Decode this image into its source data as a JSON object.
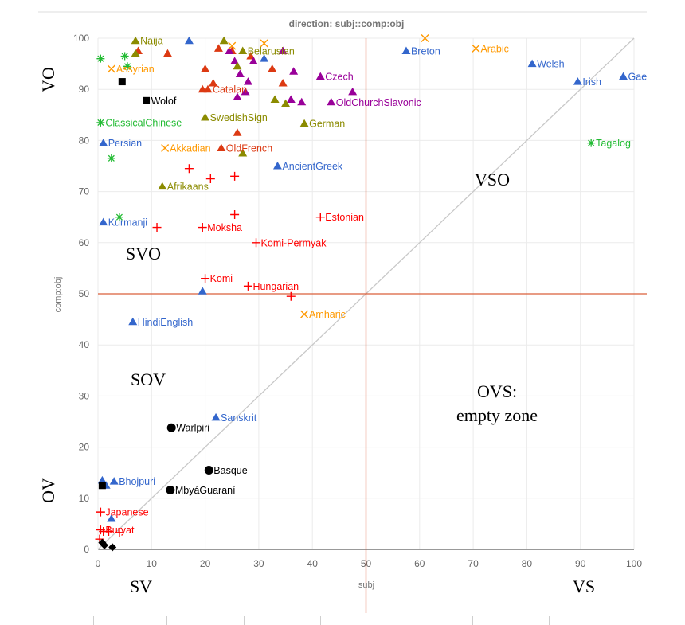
{
  "chart_data": {
    "type": "scatter",
    "title": "direction: subj::comp:obj",
    "xlabel": "subj",
    "ylabel": "comp:obj",
    "xlim": [
      0,
      100
    ],
    "ylim": [
      0,
      100
    ],
    "xticks": [
      "0",
      "10",
      "20",
      "30",
      "40",
      "50",
      "60",
      "70",
      "80",
      "90",
      "100"
    ],
    "yticks": [
      "0",
      "10",
      "20",
      "30",
      "40",
      "50",
      "60",
      "70",
      "80",
      "90",
      "100"
    ],
    "grid": true,
    "reference_lines": {
      "vertical_x": 50,
      "horizontal_y": 50,
      "diagonal": true
    },
    "zone_labels": [
      "VO",
      "OV",
      "SV",
      "VS",
      "SVO",
      "SOV",
      "VSO",
      "OVS:",
      "empty zone"
    ],
    "series": [
      {
        "marker": "triangle",
        "color": "#3366cc",
        "points": [
          {
            "x": 17,
            "y": 99.5
          },
          {
            "x": 31,
            "y": 96
          },
          {
            "x": 57.5,
            "y": 97.5,
            "label": "Breton"
          },
          {
            "x": 81,
            "y": 95,
            "label": "Welsh"
          },
          {
            "x": 89.5,
            "y": 91.5,
            "label": "Irish"
          },
          {
            "x": 98,
            "y": 92.5,
            "label": "Gae"
          },
          {
            "x": 1,
            "y": 79.5,
            "label": "Persian"
          },
          {
            "x": 33.5,
            "y": 75,
            "label": "AncientGreek"
          },
          {
            "x": 1,
            "y": 64,
            "label": "Kurmanji"
          },
          {
            "x": 19.5,
            "y": 50.5
          },
          {
            "x": 6.5,
            "y": 44.5,
            "label": "HindiEnglish"
          },
          {
            "x": 22,
            "y": 25.8,
            "label": "Sanskrit"
          },
          {
            "x": 0.8,
            "y": 13.5
          },
          {
            "x": 1.5,
            "y": 12.5
          },
          {
            "x": 3,
            "y": 13.3,
            "label": "Bhojpuri"
          },
          {
            "x": 2.5,
            "y": 6
          }
        ]
      },
      {
        "marker": "triangle",
        "color": "#dc3912",
        "points": [
          {
            "x": 7.5,
            "y": 97.5
          },
          {
            "x": 13,
            "y": 97
          },
          {
            "x": 20,
            "y": 94
          },
          {
            "x": 22.5,
            "y": 98
          },
          {
            "x": 25,
            "y": 97.5
          },
          {
            "x": 19.5,
            "y": 90
          },
          {
            "x": 21.5,
            "y": 91.2
          },
          {
            "x": 20.5,
            "y": 90,
            "label": "Catalan"
          },
          {
            "x": 34.5,
            "y": 91.2
          },
          {
            "x": 32.5,
            "y": 94
          },
          {
            "x": 28.5,
            "y": 96.5
          },
          {
            "x": 26,
            "y": 81.5
          },
          {
            "x": 23,
            "y": 78.5,
            "label": "OldFrench"
          }
        ]
      },
      {
        "marker": "triangle",
        "color": "#990099",
        "points": [
          {
            "x": 24.5,
            "y": 97.5
          },
          {
            "x": 25.5,
            "y": 95.5
          },
          {
            "x": 26.5,
            "y": 93
          },
          {
            "x": 28,
            "y": 91.5
          },
          {
            "x": 29,
            "y": 95.5
          },
          {
            "x": 27.5,
            "y": 89.5
          },
          {
            "x": 26,
            "y": 88.5
          },
          {
            "x": 34.5,
            "y": 97.5
          },
          {
            "x": 36.5,
            "y": 93.5
          },
          {
            "x": 41.5,
            "y": 92.5,
            "label": "Czech"
          },
          {
            "x": 36,
            "y": 88
          },
          {
            "x": 38,
            "y": 87.5
          },
          {
            "x": 47.5,
            "y": 89.5
          },
          {
            "x": 43.5,
            "y": 87.5,
            "label": "OldChurchSlavonic"
          }
        ]
      },
      {
        "marker": "triangle",
        "color": "#8b8b00",
        "points": [
          {
            "x": 7,
            "y": 99.5,
            "label": "Naija"
          },
          {
            "x": 7,
            "y": 97
          },
          {
            "x": 23.5,
            "y": 99.5
          },
          {
            "x": 26,
            "y": 94.5
          },
          {
            "x": 27,
            "y": 97.5,
            "label": "Belarusian"
          },
          {
            "x": 33,
            "y": 88
          },
          {
            "x": 35,
            "y": 87.2
          },
          {
            "x": 20,
            "y": 84.5,
            "label": "SwedishSign"
          },
          {
            "x": 38.5,
            "y": 83.3,
            "label": "German"
          },
          {
            "x": 27,
            "y": 77.5
          },
          {
            "x": 12,
            "y": 71,
            "label": "Afrikaans"
          }
        ]
      },
      {
        "marker": "x",
        "color": "#ff9900",
        "points": [
          {
            "x": 25,
            "y": 98.5
          },
          {
            "x": 31,
            "y": 99
          },
          {
            "x": 61,
            "y": 100
          },
          {
            "x": 70.5,
            "y": 98,
            "label": "Arabic"
          },
          {
            "x": 2.5,
            "y": 94,
            "label": "Assyrian"
          },
          {
            "x": 12.5,
            "y": 78.5,
            "label": "Akkadian"
          },
          {
            "x": 38.5,
            "y": 46,
            "label": "Amharic"
          }
        ]
      },
      {
        "marker": "asterisk",
        "color": "#22bb33",
        "points": [
          {
            "x": 0.5,
            "y": 96
          },
          {
            "x": 5,
            "y": 96.5
          },
          {
            "x": 5.5,
            "y": 94.5
          },
          {
            "x": 0.5,
            "y": 83.5,
            "label": "ClassicalChinese"
          },
          {
            "x": 2.5,
            "y": 76.5
          },
          {
            "x": 92,
            "y": 79.5,
            "label": "Tagalog"
          },
          {
            "x": 4,
            "y": 65
          }
        ]
      },
      {
        "marker": "plus",
        "color": "#ff0000",
        "points": [
          {
            "x": 17,
            "y": 74.5
          },
          {
            "x": 21,
            "y": 72.5
          },
          {
            "x": 25.5,
            "y": 73
          },
          {
            "x": 11,
            "y": 63
          },
          {
            "x": 19.5,
            "y": 63,
            "label": "Moksha"
          },
          {
            "x": 25.5,
            "y": 65.5
          },
          {
            "x": 41.5,
            "y": 65,
            "label": "Estonian"
          },
          {
            "x": 29.5,
            "y": 60,
            "label": "Komi-Permyak"
          },
          {
            "x": 20,
            "y": 53,
            "label": "Komi"
          },
          {
            "x": 28,
            "y": 51.5,
            "label": "Hungarian"
          },
          {
            "x": 36,
            "y": 49.5
          },
          {
            "x": 0.5,
            "y": 7.3,
            "label": "Japanese"
          },
          {
            "x": 0.5,
            "y": 3.8,
            "label": "Buryat"
          },
          {
            "x": 1,
            "y": 3.5
          },
          {
            "x": 2,
            "y": 3.5
          },
          {
            "x": 4,
            "y": 3.3
          },
          {
            "x": 0.3,
            "y": 2
          }
        ]
      },
      {
        "marker": "square",
        "color": "#000000",
        "points": [
          {
            "x": 4.5,
            "y": 91.5
          },
          {
            "x": 9,
            "y": 87.8,
            "label": "Wolof"
          },
          {
            "x": 0.8,
            "y": 12.5
          }
        ]
      },
      {
        "marker": "circle",
        "color": "#000000",
        "points": [
          {
            "x": 13.7,
            "y": 23.8,
            "label": "Warlpiri"
          },
          {
            "x": 20.7,
            "y": 15.5,
            "label": "Basque"
          },
          {
            "x": 13.5,
            "y": 11.6,
            "label": "MbyáGuaraní"
          }
        ]
      },
      {
        "marker": "diamond",
        "color": "#000000",
        "points": [
          {
            "x": 0.8,
            "y": 1.3
          },
          {
            "x": 1.2,
            "y": 0.8
          },
          {
            "x": 2.7,
            "y": 0.4
          }
        ]
      }
    ]
  }
}
